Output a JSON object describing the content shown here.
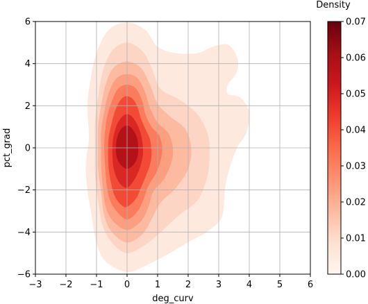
{
  "chart_data": {
    "type": "heatmap",
    "subtype": "kde-filled-contour",
    "xlabel": "deg_curv",
    "ylabel": "pct_grad",
    "xlim": [
      -3,
      6
    ],
    "ylim": [
      -6,
      6
    ],
    "x_ticks": [
      -3,
      -2,
      -1,
      0,
      1,
      2,
      3,
      4,
      5,
      6
    ],
    "y_ticks": [
      -6,
      -4,
      -2,
      0,
      2,
      4,
      6
    ],
    "x_tick_labels": [
      "−3",
      "−2",
      "−1",
      "0",
      "1",
      "2",
      "3",
      "4",
      "5",
      "6"
    ],
    "y_tick_labels": [
      "−6",
      "−4",
      "−2",
      "0",
      "2",
      "4",
      "6"
    ],
    "grid": true,
    "colorbar": {
      "label": "Density",
      "range": [
        0,
        0.07
      ],
      "ticks": [
        0,
        0.01,
        0.02,
        0.03,
        0.04,
        0.05,
        0.06,
        0.07
      ],
      "tick_labels": [
        "0.00",
        "0.01",
        "0.02",
        "0.03",
        "0.04",
        "0.05",
        "0.06",
        "0.07"
      ],
      "colormap": "Reds",
      "colors": [
        "#fff5f0",
        "#fee0d2",
        "#fcbba1",
        "#fc9272",
        "#fb6a4a",
        "#ef3b2c",
        "#cb181d",
        "#a50f15",
        "#67000d"
      ]
    },
    "levels": [
      {
        "level": 0.0025,
        "color": "#fee9df",
        "polygon": [
          [
            0.0,
            -5.9
          ],
          [
            0.6,
            -5.6
          ],
          [
            1.4,
            -5.0
          ],
          [
            2.1,
            -4.4
          ],
          [
            2.6,
            -4.0
          ],
          [
            3.1,
            -3.3
          ],
          [
            3.2,
            -2.0
          ],
          [
            3.35,
            -1.0
          ],
          [
            3.6,
            0.0
          ],
          [
            3.9,
            0.7
          ],
          [
            4.0,
            1.7
          ],
          [
            3.7,
            2.4
          ],
          [
            3.3,
            2.55
          ],
          [
            3.3,
            3.0
          ],
          [
            3.6,
            3.6
          ],
          [
            3.6,
            4.3
          ],
          [
            3.3,
            4.9
          ],
          [
            2.8,
            4.8
          ],
          [
            2.3,
            4.5
          ],
          [
            1.6,
            4.5
          ],
          [
            1.0,
            4.8
          ],
          [
            0.6,
            5.6
          ],
          [
            0.0,
            5.95
          ],
          [
            -0.6,
            5.6
          ],
          [
            -1.0,
            4.5
          ],
          [
            -1.2,
            3.2
          ],
          [
            -1.3,
            2.0
          ],
          [
            -1.25,
            0.5
          ],
          [
            -1.35,
            -0.8
          ],
          [
            -1.3,
            -2.0
          ],
          [
            -1.15,
            -3.3
          ],
          [
            -1.0,
            -4.5
          ],
          [
            -0.7,
            -5.4
          ]
        ]
      },
      {
        "level": 0.005,
        "color": "#fdd5c4",
        "polygon": [
          [
            0.0,
            -5.0
          ],
          [
            0.6,
            -4.6
          ],
          [
            1.1,
            -4.0
          ],
          [
            1.7,
            -3.2
          ],
          [
            2.3,
            -2.5
          ],
          [
            2.6,
            -1.5
          ],
          [
            2.7,
            -0.5
          ],
          [
            2.65,
            0.6
          ],
          [
            2.3,
            1.6
          ],
          [
            1.7,
            2.3
          ],
          [
            1.1,
            2.8
          ],
          [
            0.8,
            3.8
          ],
          [
            0.5,
            4.6
          ],
          [
            0.0,
            5.0
          ],
          [
            -0.5,
            4.6
          ],
          [
            -0.8,
            3.6
          ],
          [
            -0.95,
            2.4
          ],
          [
            -1.05,
            1.2
          ],
          [
            -1.05,
            0.0
          ],
          [
            -1.05,
            -1.2
          ],
          [
            -0.95,
            -2.5
          ],
          [
            -0.8,
            -3.7
          ],
          [
            -0.5,
            -4.5
          ]
        ]
      },
      {
        "level": 0.01,
        "color": "#fcbba1",
        "polygon": [
          [
            0.0,
            -4.5
          ],
          [
            0.5,
            -4.1
          ],
          [
            0.8,
            -3.4
          ],
          [
            1.1,
            -2.6
          ],
          [
            1.6,
            -1.9
          ],
          [
            2.0,
            -1.0
          ],
          [
            2.1,
            0.0
          ],
          [
            1.9,
            0.9
          ],
          [
            1.4,
            1.5
          ],
          [
            1.0,
            2.1
          ],
          [
            0.75,
            3.0
          ],
          [
            0.45,
            3.8
          ],
          [
            0.0,
            4.1
          ],
          [
            -0.45,
            3.8
          ],
          [
            -0.7,
            3.0
          ],
          [
            -0.85,
            2.0
          ],
          [
            -0.95,
            1.0
          ],
          [
            -0.95,
            0.0
          ],
          [
            -0.95,
            -1.0
          ],
          [
            -0.85,
            -2.1
          ],
          [
            -0.75,
            -3.2
          ],
          [
            -0.5,
            -4.0
          ]
        ]
      },
      {
        "level": 0.02,
        "color": "#fc9f80",
        "polygon": [
          [
            0.0,
            -3.9
          ],
          [
            0.45,
            -3.5
          ],
          [
            0.7,
            -2.8
          ],
          [
            0.85,
            -2.1
          ],
          [
            1.2,
            -1.5
          ],
          [
            1.45,
            -0.7
          ],
          [
            1.5,
            0.0
          ],
          [
            1.35,
            0.7
          ],
          [
            1.0,
            1.2
          ],
          [
            0.75,
            1.9
          ],
          [
            0.6,
            2.6
          ],
          [
            0.35,
            3.3
          ],
          [
            0.0,
            3.5
          ],
          [
            -0.35,
            3.3
          ],
          [
            -0.6,
            2.6
          ],
          [
            -0.75,
            1.7
          ],
          [
            -0.85,
            0.8
          ],
          [
            -0.85,
            0.0
          ],
          [
            -0.85,
            -0.8
          ],
          [
            -0.8,
            -1.8
          ],
          [
            -0.7,
            -2.8
          ],
          [
            -0.45,
            -3.5
          ]
        ]
      },
      {
        "level": 0.03,
        "color": "#fb7c5c",
        "polygon": [
          [
            0.0,
            -3.4
          ],
          [
            0.35,
            -3.0
          ],
          [
            0.55,
            -2.4
          ],
          [
            0.7,
            -1.8
          ],
          [
            0.95,
            -1.2
          ],
          [
            1.1,
            -0.6
          ],
          [
            1.15,
            0.0
          ],
          [
            1.05,
            0.6
          ],
          [
            0.8,
            1.0
          ],
          [
            0.6,
            1.6
          ],
          [
            0.5,
            2.2
          ],
          [
            0.3,
            2.8
          ],
          [
            0.0,
            3.0
          ],
          [
            -0.3,
            2.8
          ],
          [
            -0.5,
            2.2
          ],
          [
            -0.65,
            1.5
          ],
          [
            -0.72,
            0.8
          ],
          [
            -0.75,
            0.0
          ],
          [
            -0.72,
            -0.8
          ],
          [
            -0.68,
            -1.6
          ],
          [
            -0.58,
            -2.4
          ],
          [
            -0.35,
            -3.0
          ]
        ]
      },
      {
        "level": 0.04,
        "color": "#f24a35",
        "polygon": [
          [
            0.0,
            -2.8
          ],
          [
            0.3,
            -2.4
          ],
          [
            0.45,
            -1.9
          ],
          [
            0.6,
            -1.4
          ],
          [
            0.75,
            -0.8
          ],
          [
            0.8,
            -0.3
          ],
          [
            0.75,
            0.4
          ],
          [
            0.6,
            0.9
          ],
          [
            0.45,
            1.4
          ],
          [
            0.35,
            1.9
          ],
          [
            0.2,
            2.3
          ],
          [
            0.0,
            2.45
          ],
          [
            -0.2,
            2.3
          ],
          [
            -0.38,
            1.8
          ],
          [
            -0.5,
            1.2
          ],
          [
            -0.6,
            0.5
          ],
          [
            -0.62,
            -0.2
          ],
          [
            -0.6,
            -1.0
          ],
          [
            -0.52,
            -1.7
          ],
          [
            -0.4,
            -2.3
          ],
          [
            -0.2,
            -2.7
          ]
        ]
      },
      {
        "level": 0.05,
        "color": "#d92723",
        "polygon": [
          [
            0.0,
            -1.9
          ],
          [
            0.2,
            -1.6
          ],
          [
            0.35,
            -1.2
          ],
          [
            0.45,
            -0.8
          ],
          [
            0.52,
            -0.3
          ],
          [
            0.5,
            0.3
          ],
          [
            0.42,
            0.8
          ],
          [
            0.3,
            1.2
          ],
          [
            0.15,
            1.5
          ],
          [
            0.0,
            1.6
          ],
          [
            -0.15,
            1.5
          ],
          [
            -0.3,
            1.2
          ],
          [
            -0.4,
            0.8
          ],
          [
            -0.47,
            0.3
          ],
          [
            -0.48,
            -0.3
          ],
          [
            -0.45,
            -0.9
          ],
          [
            -0.35,
            -1.4
          ],
          [
            -0.2,
            -1.75
          ]
        ]
      },
      {
        "level": 0.06,
        "color": "#b31218",
        "polygon": [
          [
            0.0,
            -1.0
          ],
          [
            0.18,
            -0.85
          ],
          [
            0.3,
            -0.6
          ],
          [
            0.36,
            -0.25
          ],
          [
            0.36,
            0.15
          ],
          [
            0.32,
            0.5
          ],
          [
            0.22,
            0.8
          ],
          [
            0.1,
            1.0
          ],
          [
            0.0,
            1.05
          ],
          [
            -0.12,
            1.0
          ],
          [
            -0.24,
            0.8
          ],
          [
            -0.32,
            0.5
          ],
          [
            -0.36,
            0.15
          ],
          [
            -0.36,
            -0.25
          ],
          [
            -0.3,
            -0.6
          ],
          [
            -0.18,
            -0.85
          ]
        ]
      }
    ]
  }
}
